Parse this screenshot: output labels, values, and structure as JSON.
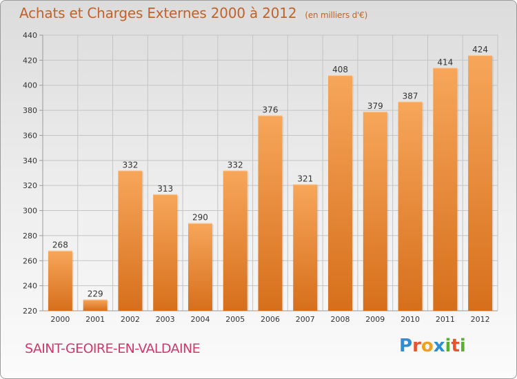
{
  "header": {
    "title": "Achats et Charges Externes 2000 à 2012",
    "unit": "(en milliers d'€)"
  },
  "footer": {
    "commune": "SAINT-GEOIRE-EN-VALDAINE",
    "logo_letters": [
      "P",
      "r",
      "o",
      "x",
      "i",
      "t",
      "i"
    ],
    "logo_colors": [
      "#2e8fd0",
      "#e5542e",
      "#f0a020",
      "#2e8fd0",
      "#59b030",
      "#e5542e",
      "#59b030"
    ]
  },
  "colors": {
    "bar_top": "#f7a65a",
    "bar_bottom": "#d66f1c",
    "title": "#c0622a",
    "commune": "#d2386a",
    "grid": "#c4c4c4"
  },
  "chart_data": {
    "type": "bar",
    "title": "Achats et Charges Externes 2000 à 2012",
    "subtitle": "(en milliers d'€)",
    "categories": [
      "2000",
      "2001",
      "2002",
      "2003",
      "2004",
      "2005",
      "2006",
      "2007",
      "2008",
      "2009",
      "2010",
      "2011",
      "2012"
    ],
    "values": [
      268,
      229,
      332,
      313,
      290,
      332,
      376,
      321,
      408,
      379,
      387,
      414,
      424
    ],
    "ylim": [
      220,
      440
    ],
    "yticks": [
      220,
      240,
      260,
      280,
      300,
      320,
      340,
      360,
      380,
      400,
      420,
      440
    ],
    "grid": true,
    "legend": "none"
  }
}
